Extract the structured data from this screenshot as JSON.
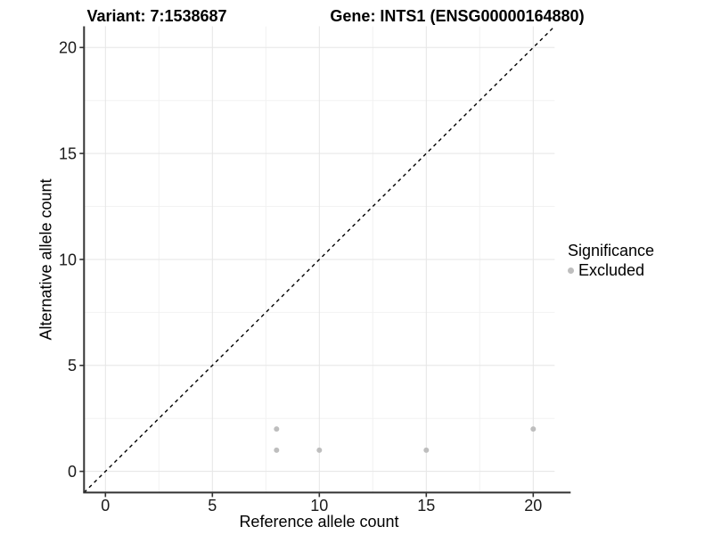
{
  "titles": {
    "variant": "Variant: 7:1538687",
    "gene": "Gene: INTS1 (ENSG00000164880)"
  },
  "chart_data": {
    "type": "scatter",
    "title_left": "Variant: 7:1538687",
    "title_right": "Gene: INTS1 (ENSG00000164880)",
    "xlabel": "Reference allele count",
    "ylabel": "Alternative allele count",
    "xlim": [
      -1,
      21
    ],
    "ylim": [
      -1,
      21
    ],
    "xticks": [
      0,
      5,
      10,
      15,
      20
    ],
    "yticks": [
      0,
      5,
      10,
      15,
      20
    ],
    "minor_ticks": [
      2.5,
      7.5,
      12.5,
      17.5
    ],
    "grid": true,
    "identity_line": {
      "style": "dashed",
      "from": [
        -1,
        -1
      ],
      "to": [
        21,
        21
      ],
      "color": "#000000"
    },
    "series": [
      {
        "name": "Excluded",
        "color": "#bebebe",
        "points": [
          [
            8,
            1
          ],
          [
            8,
            2
          ],
          [
            10,
            1
          ],
          [
            15,
            1
          ],
          [
            20,
            2
          ]
        ]
      }
    ],
    "legend": {
      "title": "Significance",
      "position": "right",
      "items": [
        {
          "label": "Excluded",
          "color": "#bebebe"
        }
      ]
    }
  },
  "colors": {
    "point": "#bebebe",
    "grid_major": "#e5e5e5",
    "grid_minor": "#f2f2f2",
    "axis_line": "#333333",
    "tick_text": "#1a1a1a"
  }
}
